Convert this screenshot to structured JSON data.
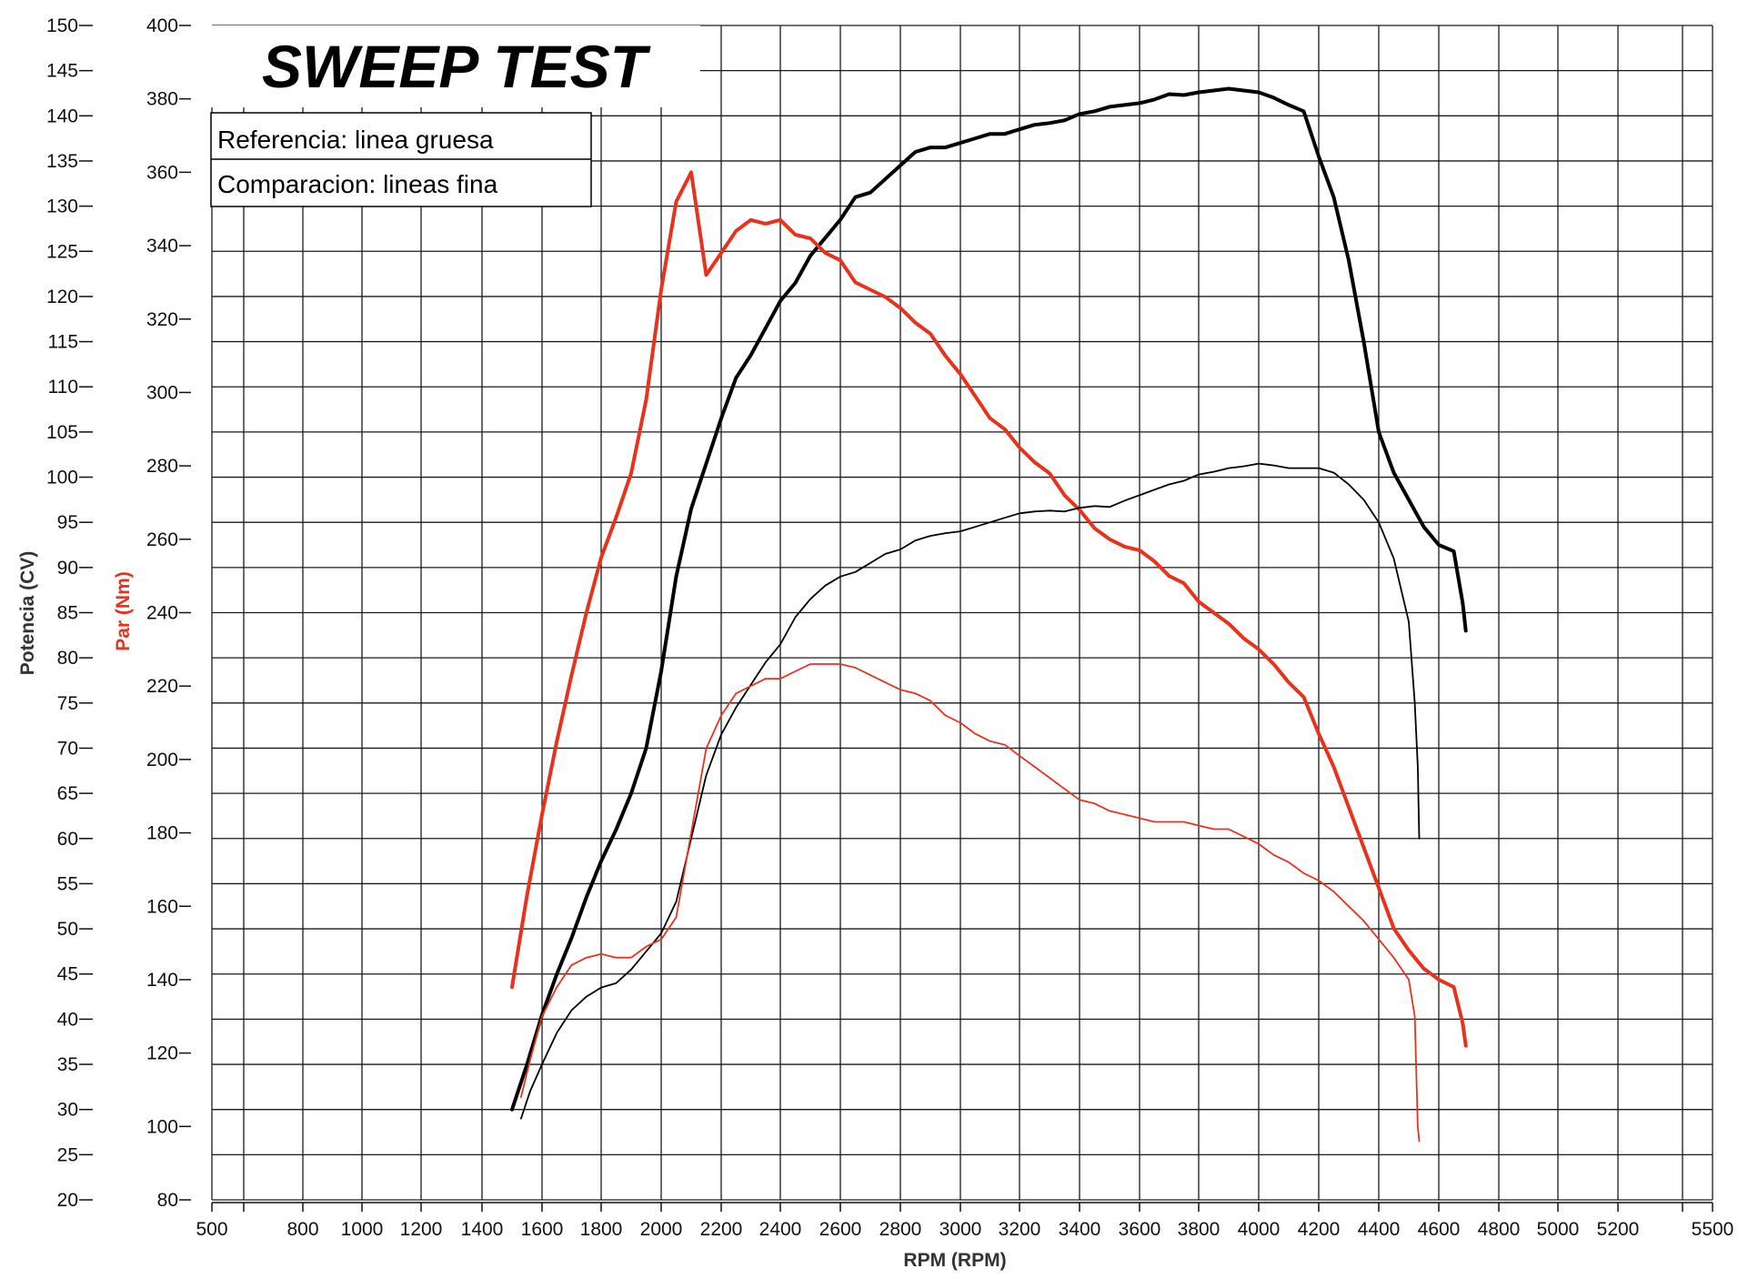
{
  "chart_data": {
    "type": "line",
    "title": "SWEEP TEST",
    "legend": [
      "Referencia: linea gruesa",
      "Comparacion: lineas fina"
    ],
    "xlabel": "RPM (RPM)",
    "ylabel_power": "Potencia (CV)",
    "ylabel_torque": "Par (Nm)",
    "xlim": [
      500,
      5500
    ],
    "ylim_power": [
      20,
      150
    ],
    "ylim_torque": [
      80,
      400
    ],
    "x_ticks": [
      500,
      800,
      1000,
      1200,
      1400,
      1600,
      1800,
      2000,
      2200,
      2400,
      2600,
      2800,
      3000,
      3200,
      3400,
      3600,
      3800,
      4000,
      4200,
      4400,
      4600,
      4800,
      5000,
      5200,
      5500
    ],
    "power_ticks": [
      20,
      25,
      30,
      35,
      40,
      45,
      50,
      55,
      60,
      65,
      70,
      75,
      80,
      85,
      90,
      95,
      100,
      105,
      110,
      115,
      120,
      125,
      130,
      135,
      140,
      145,
      150
    ],
    "torque_ticks": [
      80,
      100,
      120,
      140,
      160,
      180,
      200,
      220,
      240,
      260,
      280,
      300,
      320,
      340,
      360,
      380,
      400
    ],
    "colors": {
      "power": "#000000",
      "torque": "#e8321e",
      "grid": "#1a1a1a",
      "power_label": "#333333",
      "torque_label": "#e8321e"
    },
    "series": [
      {
        "name": "Potencia referencia",
        "axis": "power",
        "color": "#000000",
        "weight": "thick",
        "x": [
          1500,
          1550,
          1600,
          1650,
          1700,
          1750,
          1800,
          1850,
          1900,
          1950,
          2000,
          2050,
          2100,
          2150,
          2200,
          2250,
          2300,
          2350,
          2400,
          2450,
          2500,
          2550,
          2600,
          2650,
          2700,
          2750,
          2800,
          2850,
          2900,
          2950,
          3000,
          3050,
          3100,
          3150,
          3200,
          3250,
          3300,
          3350,
          3400,
          3450,
          3500,
          3550,
          3600,
          3650,
          3700,
          3750,
          3800,
          3850,
          3900,
          3950,
          4000,
          4050,
          4100,
          4150,
          4200,
          4250,
          4300,
          4350,
          4400,
          4450,
          4500,
          4550,
          4600,
          4650,
          4680,
          4690
        ],
        "values": [
          30,
          35,
          40.5,
          45,
          49,
          53.5,
          57.5,
          61,
          65,
          70,
          78.5,
          89,
          96.5,
          101.5,
          106.5,
          111,
          113.5,
          116.5,
          119.5,
          121.5,
          124.5,
          126.5,
          128.5,
          131,
          131.5,
          133,
          134.5,
          136,
          136.5,
          136.5,
          137,
          137.5,
          138,
          138,
          138.5,
          139,
          139.2,
          139.5,
          140.2,
          140.5,
          141,
          141.2,
          141.4,
          141.8,
          142.4,
          142.3,
          142.6,
          142.8,
          143,
          142.8,
          142.6,
          142,
          141.2,
          140.5,
          135.5,
          131,
          124,
          115,
          105,
          100.5,
          97.5,
          94.5,
          92.5,
          91.8,
          86,
          83
        ]
      },
      {
        "name": "Par referencia",
        "axis": "torque",
        "color": "#e8321e",
        "weight": "thick",
        "x": [
          1500,
          1550,
          1600,
          1650,
          1700,
          1750,
          1800,
          1850,
          1900,
          1950,
          2000,
          2050,
          2100,
          2150,
          2200,
          2250,
          2300,
          2350,
          2400,
          2450,
          2500,
          2550,
          2600,
          2650,
          2700,
          2750,
          2800,
          2850,
          2900,
          2950,
          3000,
          3050,
          3100,
          3150,
          3200,
          3250,
          3300,
          3350,
          3400,
          3450,
          3500,
          3550,
          3600,
          3650,
          3700,
          3750,
          3800,
          3850,
          3900,
          3950,
          4000,
          4050,
          4100,
          4150,
          4200,
          4250,
          4300,
          4350,
          4400,
          4450,
          4500,
          4550,
          4600,
          4650,
          4680,
          4690
        ],
        "values": [
          138,
          163,
          185,
          205,
          223,
          240,
          255,
          266,
          278,
          298,
          328,
          352,
          360,
          332,
          338,
          344,
          347,
          346,
          347,
          343,
          342,
          338,
          336,
          330,
          328,
          326,
          323,
          319,
          316,
          310,
          305,
          299,
          293,
          290,
          285,
          281,
          278,
          272,
          268,
          263,
          260,
          258,
          257,
          254,
          250,
          248,
          243,
          240,
          237,
          233,
          230,
          226,
          221,
          217,
          207,
          198,
          187,
          176,
          165,
          154,
          148,
          143,
          140,
          138,
          128,
          122
        ]
      },
      {
        "name": "Potencia comparacion",
        "axis": "power",
        "color": "#000000",
        "weight": "thin",
        "x": [
          1530,
          1560,
          1600,
          1650,
          1700,
          1750,
          1800,
          1850,
          1900,
          1950,
          2000,
          2050,
          2100,
          2150,
          2200,
          2250,
          2300,
          2350,
          2400,
          2450,
          2500,
          2550,
          2600,
          2650,
          2700,
          2750,
          2800,
          2850,
          2900,
          2950,
          3000,
          3050,
          3100,
          3150,
          3200,
          3250,
          3300,
          3350,
          3400,
          3450,
          3500,
          3550,
          3600,
          3650,
          3700,
          3750,
          3800,
          3850,
          3900,
          3950,
          4000,
          4050,
          4100,
          4150,
          4200,
          4250,
          4300,
          4350,
          4400,
          4450,
          4500,
          4520,
          4530,
          4535
        ],
        "values": [
          29,
          32,
          35,
          38.5,
          41,
          42.5,
          43.5,
          44,
          45.5,
          47.5,
          49.5,
          53,
          60,
          67,
          71.5,
          74.5,
          77,
          79.5,
          81.5,
          84.5,
          86.5,
          88,
          89,
          89.5,
          90.5,
          91.5,
          92,
          93,
          93.5,
          93.8,
          94,
          94.5,
          95,
          95.5,
          96,
          96.2,
          96.3,
          96.2,
          96.6,
          96.8,
          96.7,
          97.4,
          98,
          98.6,
          99.2,
          99.6,
          100.3,
          100.6,
          101,
          101.2,
          101.5,
          101.3,
          101,
          101,
          101,
          100.5,
          99.2,
          97.5,
          95,
          91,
          84,
          75,
          68,
          60
        ]
      },
      {
        "name": "Par comparacion",
        "axis": "torque",
        "color": "#e8321e",
        "weight": "thin",
        "x": [
          1530,
          1560,
          1600,
          1650,
          1700,
          1750,
          1800,
          1850,
          1900,
          1950,
          2000,
          2050,
          2100,
          2150,
          2200,
          2250,
          2300,
          2350,
          2400,
          2450,
          2500,
          2550,
          2600,
          2650,
          2700,
          2750,
          2800,
          2850,
          2900,
          2950,
          3000,
          3050,
          3100,
          3150,
          3200,
          3250,
          3300,
          3350,
          3400,
          3450,
          3500,
          3550,
          3600,
          3650,
          3700,
          3750,
          3800,
          3850,
          3900,
          3950,
          4000,
          4050,
          4100,
          4150,
          4200,
          4250,
          4300,
          4350,
          4400,
          4450,
          4500,
          4520,
          4530,
          4535
        ],
        "values": [
          108,
          118,
          130,
          138,
          144,
          146,
          147,
          146,
          146,
          149,
          151,
          157,
          180,
          203,
          212,
          218,
          220,
          222,
          222,
          224,
          226,
          226,
          226,
          225,
          223,
          221,
          219,
          218,
          216,
          212,
          210,
          207,
          205,
          204,
          201,
          198,
          195,
          192,
          189,
          188,
          186,
          185,
          184,
          183,
          183,
          183,
          182,
          181,
          181,
          179,
          177,
          174,
          172,
          169,
          167,
          164,
          160,
          156,
          151,
          146,
          140,
          130,
          100,
          96
        ]
      }
    ]
  }
}
